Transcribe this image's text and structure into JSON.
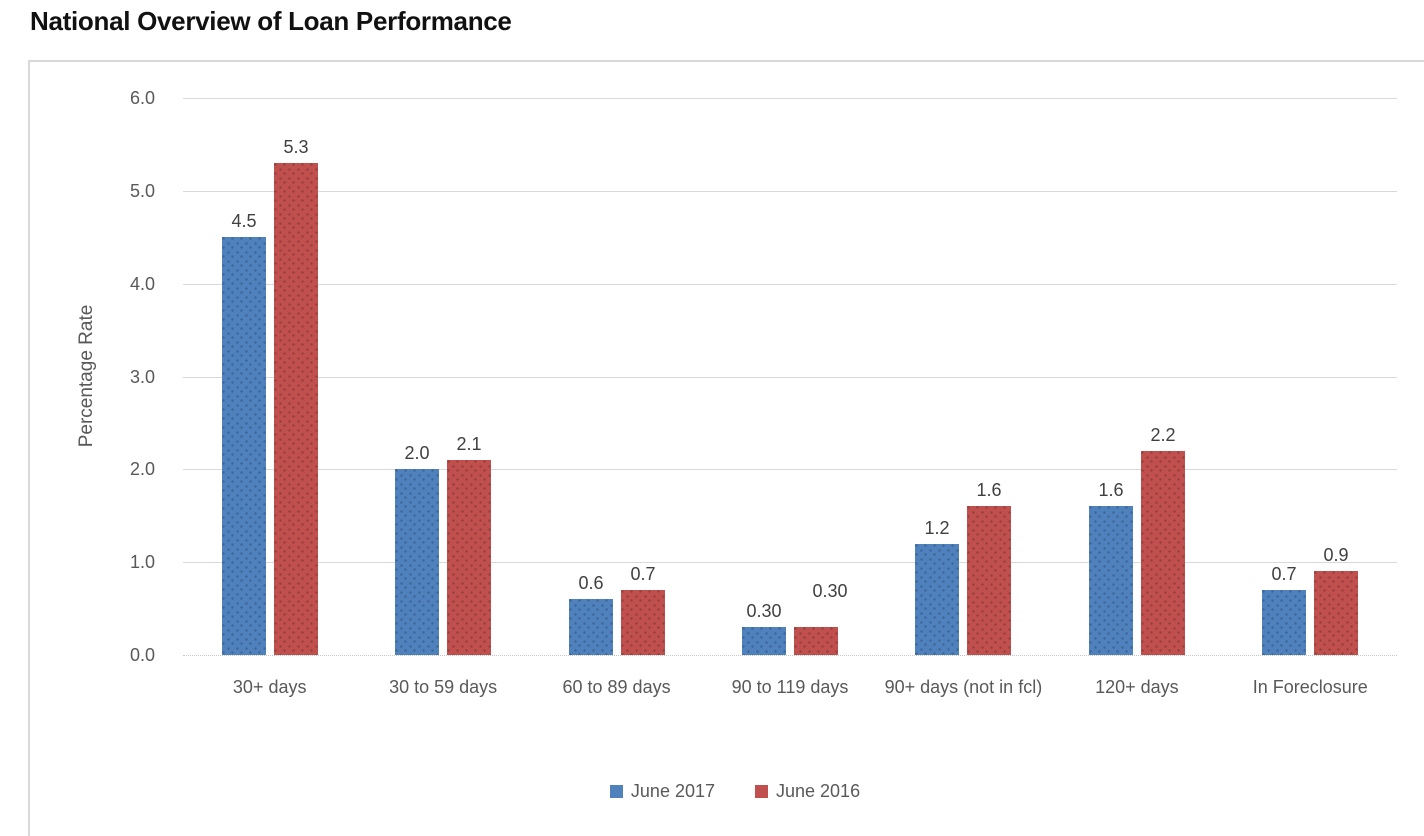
{
  "title": "National Overview of Loan Performance",
  "colors": {
    "series_2017_blue": "#4f81bd",
    "series_2016_red": "#c0504d",
    "axis_text_gray": "#595959",
    "value_label_gray": "#404040",
    "gridline_gray": "#d9d9d9",
    "frame_border_gray": "#d9d9d9",
    "title_black": "#111111"
  },
  "chart_data": {
    "type": "bar",
    "title": "National Overview of Loan Performance",
    "categories": [
      "30+ days",
      "30 to 59 days",
      "60 to 89 days",
      "90 to 119 days",
      "90+ days (not in fcl)",
      "120+ days",
      "In Foreclosure"
    ],
    "series": [
      {
        "name": "June 2017",
        "color": "#4f81bd",
        "values": [
          4.5,
          2.0,
          0.6,
          0.3,
          1.2,
          1.6,
          0.7
        ],
        "labels": [
          "4.5",
          "2.0",
          "0.6",
          "0.30",
          "1.2",
          "1.6",
          "0.7"
        ]
      },
      {
        "name": "June 2016",
        "color": "#c0504d",
        "values": [
          5.3,
          2.1,
          0.7,
          0.3,
          1.6,
          2.2,
          0.9
        ],
        "labels": [
          "5.3",
          "2.1",
          "0.7",
          "0.30",
          "1.6",
          "2.2",
          "0.9"
        ]
      }
    ],
    "xlabel": "",
    "ylabel": "Percentage Rate",
    "ylim": [
      0,
      6
    ],
    "ytick_step": 1,
    "ytick_labels": [
      "0.0",
      "1.0",
      "2.0",
      "3.0",
      "4.0",
      "5.0",
      "6.0"
    ],
    "grid": true,
    "legend_position": "bottom",
    "legend": [
      "June 2017",
      "June 2016"
    ]
  }
}
